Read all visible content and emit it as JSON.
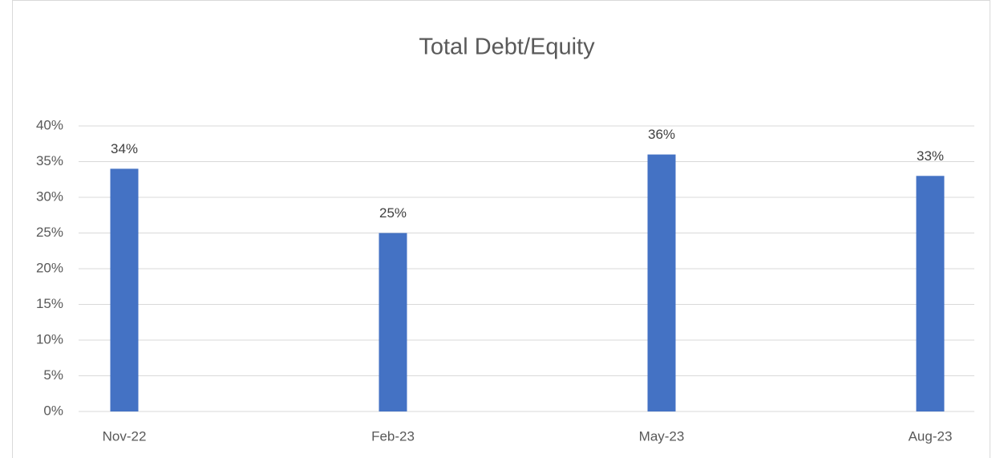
{
  "chart_data": {
    "type": "bar",
    "title": "Total Debt/Equity",
    "categories": [
      "Nov-22",
      "Feb-23",
      "May-23",
      "Aug-23"
    ],
    "values": [
      34,
      25,
      36,
      33
    ],
    "value_labels": [
      "34%",
      "25%",
      "36%",
      "33%"
    ],
    "color": "#4472c4",
    "ylim": [
      0,
      40
    ],
    "yticks": [
      {
        "value": 0,
        "label": "0%"
      },
      {
        "value": 5,
        "label": "5%"
      },
      {
        "value": 10,
        "label": "10%"
      },
      {
        "value": 15,
        "label": "15%"
      },
      {
        "value": 20,
        "label": "20%"
      },
      {
        "value": 25,
        "label": "25%"
      },
      {
        "value": 30,
        "label": "30%"
      },
      {
        "value": 35,
        "label": "35%"
      },
      {
        "value": 40,
        "label": "40%"
      }
    ],
    "grid": true
  }
}
